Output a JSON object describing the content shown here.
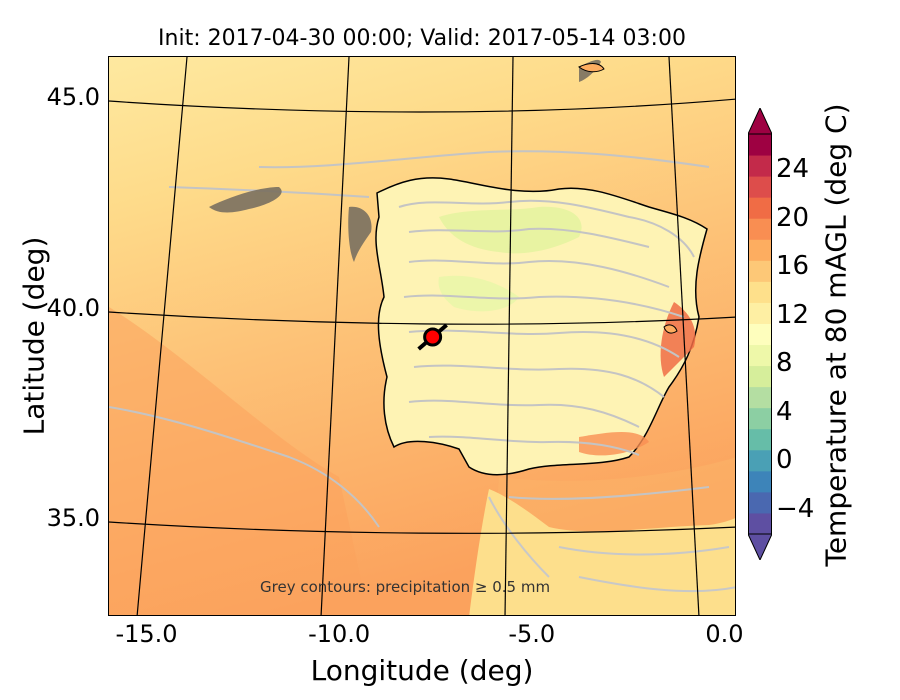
{
  "title": "Init: 2017-04-30 00:00; Valid: 2017-05-14 03:00",
  "axes": {
    "x_label": "Longitude (deg)",
    "y_label": "Latitude (deg)",
    "x_ticks": [
      "-15.0",
      "-10.0",
      "-5.0",
      "0.0"
    ],
    "y_ticks": [
      "45.0",
      "40.0",
      "35.0"
    ],
    "x_range": [
      -16.0,
      0.3
    ],
    "y_range": [
      32.7,
      46.0
    ]
  },
  "colorbar": {
    "label": "Temperature at 80 mAGL (deg C)",
    "ticks": [
      "24",
      "20",
      "16",
      "12",
      "8",
      "4",
      "0",
      "−4"
    ],
    "range": [
      -6,
      27
    ],
    "colors": [
      "#5e4fa2",
      "#4a68b0",
      "#3d84b9",
      "#4aa0b5",
      "#66bda8",
      "#8ccfa3",
      "#b4dea2",
      "#d6ee9b",
      "#eef8a9",
      "#fefebd",
      "#feefa3",
      "#fee08b",
      "#fdc877",
      "#fdad60",
      "#f98e52",
      "#f06c45",
      "#dd4d4b",
      "#c32a4a",
      "#9e0142"
    ]
  },
  "annotation": "Grey contours: precipitation ≥ 0.5 mm",
  "marker": {
    "name": "site-marker",
    "lon": -7.6,
    "lat": 39.35,
    "color": "#ff0000"
  }
}
